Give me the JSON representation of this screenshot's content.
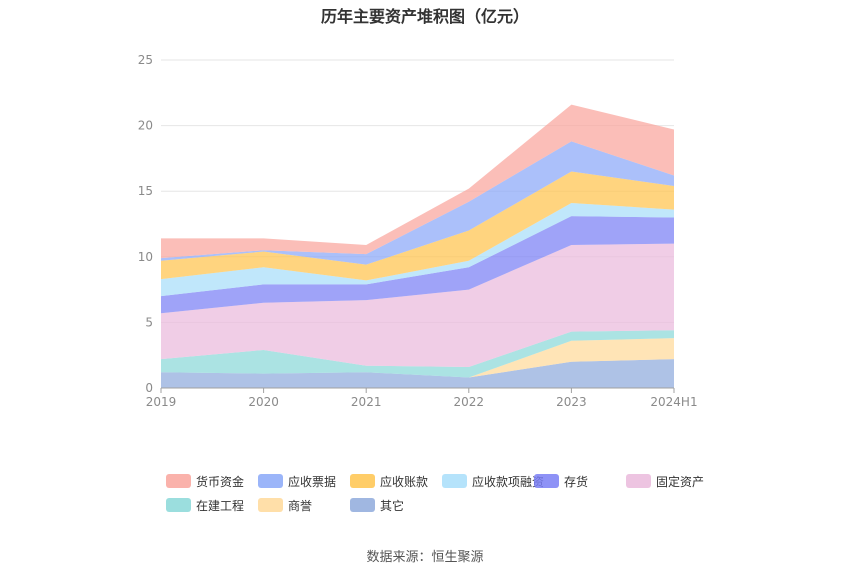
{
  "chart_data": {
    "type": "area",
    "stacked": true,
    "title": "历年主要资产堆积图（亿元）",
    "categories": [
      "2019",
      "2020",
      "2021",
      "2022",
      "2023",
      "2024H1"
    ],
    "ylim": [
      0,
      25
    ],
    "yticks": [
      0,
      5,
      10,
      15,
      20,
      25
    ],
    "grid": true,
    "legend_position": "bottom",
    "series": [
      {
        "name": "其它",
        "color": "#8faadc",
        "values": [
          1.2,
          1.1,
          1.2,
          0.8,
          2.0,
          2.2
        ]
      },
      {
        "name": "商誉",
        "color": "#ffd99a",
        "values": [
          0.0,
          0.0,
          0.0,
          0.0,
          1.6,
          1.6
        ]
      },
      {
        "name": "在建工程",
        "color": "#8ad8d8",
        "values": [
          1.0,
          1.8,
          0.5,
          0.8,
          0.7,
          0.6
        ]
      },
      {
        "name": "固定资产",
        "color": "#eabadc",
        "values": [
          3.5,
          3.6,
          5.0,
          5.9,
          6.6,
          6.6
        ]
      },
      {
        "name": "存货",
        "color": "#7a7ff5",
        "values": [
          1.3,
          1.4,
          1.2,
          1.7,
          2.2,
          2.0
        ]
      },
      {
        "name": "应收款项融资",
        "color": "#a8defa",
        "values": [
          1.3,
          1.3,
          0.3,
          0.5,
          1.0,
          0.6
        ]
      },
      {
        "name": "应收账款",
        "color": "#ffc44d",
        "values": [
          1.4,
          1.2,
          1.2,
          2.3,
          2.4,
          1.8
        ]
      },
      {
        "name": "应收票据",
        "color": "#8aa8f8",
        "values": [
          0.2,
          0.1,
          0.8,
          2.2,
          2.3,
          0.8
        ]
      },
      {
        "name": "货币资金",
        "color": "#f9a59c",
        "values": [
          1.5,
          0.9,
          0.7,
          1.0,
          2.8,
          3.5
        ]
      }
    ],
    "legend_order": [
      "货币资金",
      "应收票据",
      "应收账款",
      "应收款项融资",
      "存货",
      "固定资产",
      "在建工程",
      "商誉",
      "其它"
    ]
  },
  "source_note": "数据来源：恒生聚源"
}
